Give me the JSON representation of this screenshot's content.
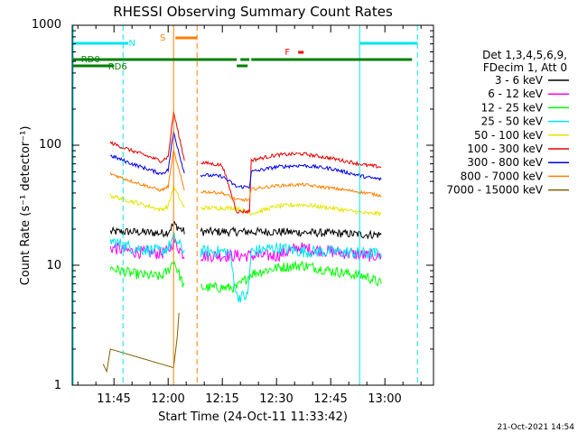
{
  "chart_data": {
    "type": "line",
    "title": "RHESSI Observing Summary Count Rates",
    "ylabel": "Count Rate (s⁻¹ detector⁻¹)",
    "xlabel": "Start Time (24-Oct-11 11:33:42)",
    "timestamp": "21-Oct-2021 14:54",
    "y_scale": "log",
    "ylim": [
      1,
      1000
    ],
    "xlim": [
      "11:33:42",
      "13:14:30"
    ],
    "y_ticks": [
      "1",
      "10",
      "100",
      "1000"
    ],
    "x_ticks": [
      "11:45",
      "12:00",
      "12:15",
      "12:30",
      "12:45",
      "13:00"
    ],
    "legend": {
      "placement": "right",
      "header": [
        "Det 1,3,4,5,6,9,",
        "FDecim 1, Att 0"
      ]
    },
    "flags": [
      {
        "label": "N",
        "color": "#00e5ee",
        "start": "11:33:42",
        "end": "11:49:00"
      },
      {
        "label": "N",
        "color": "#00e5ee",
        "start": "12:53:00",
        "end": "13:09:00"
      },
      {
        "label": "S",
        "color": "#ff7f00",
        "start": "12:02:00",
        "end": "12:08:00"
      },
      {
        "label": "F",
        "color": "#ff0000",
        "start": "12:36:00",
        "end": "12:37:30"
      },
      {
        "label": "RD0",
        "color": "#007f00",
        "segments": [
          [
            "11:33:42",
            "12:19:00"
          ],
          [
            "12:20:00",
            "12:22:30"
          ],
          [
            "12:23:00",
            "13:07:30"
          ]
        ]
      },
      {
        "label": "RD6",
        "color": "#007f00",
        "segments": [
          [
            "11:33:42",
            "11:45:00"
          ],
          [
            "12:19:00",
            "12:22:00"
          ]
        ]
      }
    ],
    "markers": [
      {
        "color": "#00e5ee",
        "style": "solid",
        "time": "11:33:42"
      },
      {
        "color": "#00e5ee",
        "style": "dashed",
        "time": "11:47:30"
      },
      {
        "color": "#ff7f00",
        "style": "solid",
        "time": "12:01:30"
      },
      {
        "color": "#ff7f00",
        "style": "dashed",
        "time": "12:08:00"
      },
      {
        "color": "#00e5ee",
        "style": "solid",
        "time": "12:53:00"
      },
      {
        "color": "#00e5ee",
        "style": "dashed",
        "time": "13:09:00"
      }
    ],
    "series": [
      {
        "name": "3 - 6 keV",
        "color": "#000000",
        "noise": 0.08,
        "x": [
          "11:44:00",
          "11:50:00",
          "11:58:00",
          "12:00:00",
          "12:01:30",
          "12:04:30",
          "12:19:00",
          "12:23:00",
          "12:30:00",
          "12:45:00",
          "12:55:00",
          "12:59:00"
        ],
        "y": [
          19,
          19,
          18.5,
          19,
          22,
          19,
          19,
          19,
          19,
          18.5,
          18,
          18
        ]
      },
      {
        "name": "6 - 12 keV",
        "color": "#ff00ff",
        "noise": 0.12,
        "x": [
          "11:44:00",
          "11:50:00",
          "11:58:00",
          "12:00:00",
          "12:01:30",
          "12:04:30",
          "12:19:00",
          "12:23:00",
          "12:30:00",
          "12:36:00",
          "12:45:00",
          "12:55:00",
          "12:59:00"
        ],
        "y": [
          14,
          13,
          12.5,
          13,
          16,
          12,
          12,
          12,
          12,
          14,
          13,
          12,
          12
        ]
      },
      {
        "name": "12 - 25 keV",
        "color": "#00ff00",
        "noise": 0.1,
        "x": [
          "11:44:00",
          "11:50:00",
          "11:58:00",
          "12:00:00",
          "12:01:30",
          "12:04:30",
          "12:19:00",
          "12:23:00",
          "12:30:00",
          "12:37:00",
          "12:45:00",
          "12:55:00",
          "12:59:00"
        ],
        "y": [
          9.5,
          8.5,
          8,
          9,
          11,
          6.5,
          6.5,
          8.5,
          9.5,
          10,
          9,
          8,
          7
        ]
      },
      {
        "name": "25 - 50 keV",
        "color": "#00e5ee",
        "noise": 0.12,
        "x": [
          "11:44:00",
          "11:50:00",
          "11:58:00",
          "12:00:00",
          "12:01:30",
          "12:04:30",
          "12:17:00",
          "12:19:00",
          "12:22:00",
          "12:23:00",
          "12:30:00",
          "12:37:00",
          "12:45:00",
          "12:55:00",
          "12:59:00"
        ],
        "y": [
          16,
          14,
          13,
          14,
          17,
          13,
          13,
          5.5,
          5.5,
          13,
          14,
          13,
          13,
          12.5,
          12.5
        ]
      },
      {
        "name": "50 - 100 keV",
        "color": "#e5e500",
        "noise": 0.04,
        "x": [
          "11:44:00",
          "11:50:00",
          "11:58:00",
          "12:00:00",
          "12:01:30",
          "12:04:30",
          "12:19:00",
          "12:23:00",
          "12:30:00",
          "12:37:00",
          "12:45:00",
          "12:55:00",
          "12:59:00"
        ],
        "y": [
          38,
          34,
          29,
          31,
          45,
          30,
          30,
          27,
          31,
          32,
          30,
          27,
          27
        ]
      },
      {
        "name": "100 - 300 keV",
        "color": "#e50000",
        "noise": 0.035,
        "x": [
          "11:44:00",
          "11:50:00",
          "11:58:00",
          "12:00:00",
          "12:01:30",
          "12:04:30",
          "12:15:00",
          "12:19:00",
          "12:22:30",
          "12:23:00",
          "12:30:00",
          "12:37:00",
          "12:45:00",
          "12:55:00",
          "12:59:00"
        ],
        "y": [
          105,
          90,
          74,
          80,
          190,
          75,
          68,
          28,
          28,
          75,
          83,
          85,
          78,
          68,
          66
        ]
      },
      {
        "name": "300 - 800 keV",
        "color": "#0000e5",
        "noise": 0.035,
        "x": [
          "11:44:00",
          "11:50:00",
          "11:58:00",
          "12:00:00",
          "12:01:30",
          "12:04:30",
          "12:15:00",
          "12:19:00",
          "12:22:30",
          "12:23:00",
          "12:30:00",
          "12:37:00",
          "12:45:00",
          "12:55:00",
          "12:59:00"
        ],
        "y": [
          82,
          70,
          58,
          62,
          130,
          58,
          55,
          45,
          45,
          60,
          66,
          68,
          64,
          54,
          52
        ]
      },
      {
        "name": "800 - 7000 keV",
        "color": "#ff7f00",
        "noise": 0.03,
        "x": [
          "11:44:00",
          "11:50:00",
          "11:58:00",
          "12:00:00",
          "12:01:30",
          "12:04:30",
          "12:15:00",
          "12:19:00",
          "12:22:30",
          "12:23:00",
          "12:30:00",
          "12:37:00",
          "12:45:00",
          "12:55:00",
          "12:59:00"
        ],
        "y": [
          58,
          50,
          42,
          45,
          90,
          42,
          40,
          35,
          35,
          43,
          46,
          47,
          44,
          40,
          38
        ]
      },
      {
        "name": "7000 - 15000 keV",
        "color": "#7f6000",
        "noise": 0.0,
        "x": [
          "11:42:00",
          "11:43:00",
          "11:44:00",
          "12:01:30",
          "12:02:30",
          "12:03:00"
        ],
        "y": [
          1.5,
          1.3,
          2.0,
          1.4,
          2.5,
          4.0
        ]
      }
    ]
  }
}
